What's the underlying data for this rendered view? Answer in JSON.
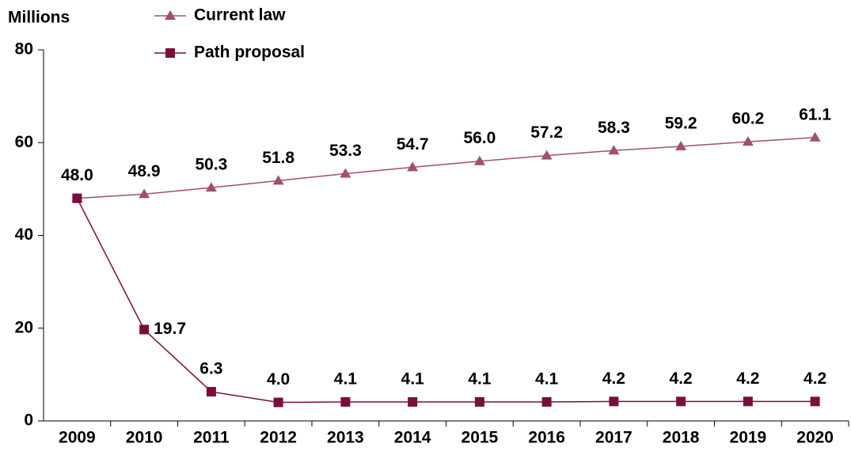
{
  "chart_data": {
    "type": "line",
    "y_label": "Millions",
    "categories": [
      "2009",
      "2010",
      "2011",
      "2012",
      "2013",
      "2014",
      "2015",
      "2016",
      "2017",
      "2018",
      "2019",
      "2020"
    ],
    "series": [
      {
        "name": "Current law",
        "color": "#a0506a",
        "marker": "triangle",
        "values": [
          48.0,
          48.9,
          50.3,
          51.8,
          53.3,
          54.7,
          56.0,
          57.2,
          58.3,
          59.2,
          60.2,
          61.1
        ],
        "value_labels": [
          "48.0",
          "48.9",
          "50.3",
          "51.8",
          "53.3",
          "54.7",
          "56.0",
          "57.2",
          "58.3",
          "59.2",
          "60.2",
          "61.1"
        ]
      },
      {
        "name": "Path proposal",
        "color": "#7a0e3a",
        "marker": "square",
        "values": [
          48.0,
          19.7,
          6.3,
          4.0,
          4.1,
          4.1,
          4.1,
          4.1,
          4.2,
          4.2,
          4.2,
          4.2
        ],
        "value_labels": [
          null,
          "19.7",
          "6.3",
          "4.0",
          "4.1",
          "4.1",
          "4.1",
          "4.1",
          "4.2",
          "4.2",
          "4.2",
          "4.2"
        ]
      }
    ],
    "ylim": [
      0,
      80
    ],
    "yticks": [
      0,
      20,
      40,
      60,
      80
    ],
    "grid": false,
    "legend": "top"
  }
}
